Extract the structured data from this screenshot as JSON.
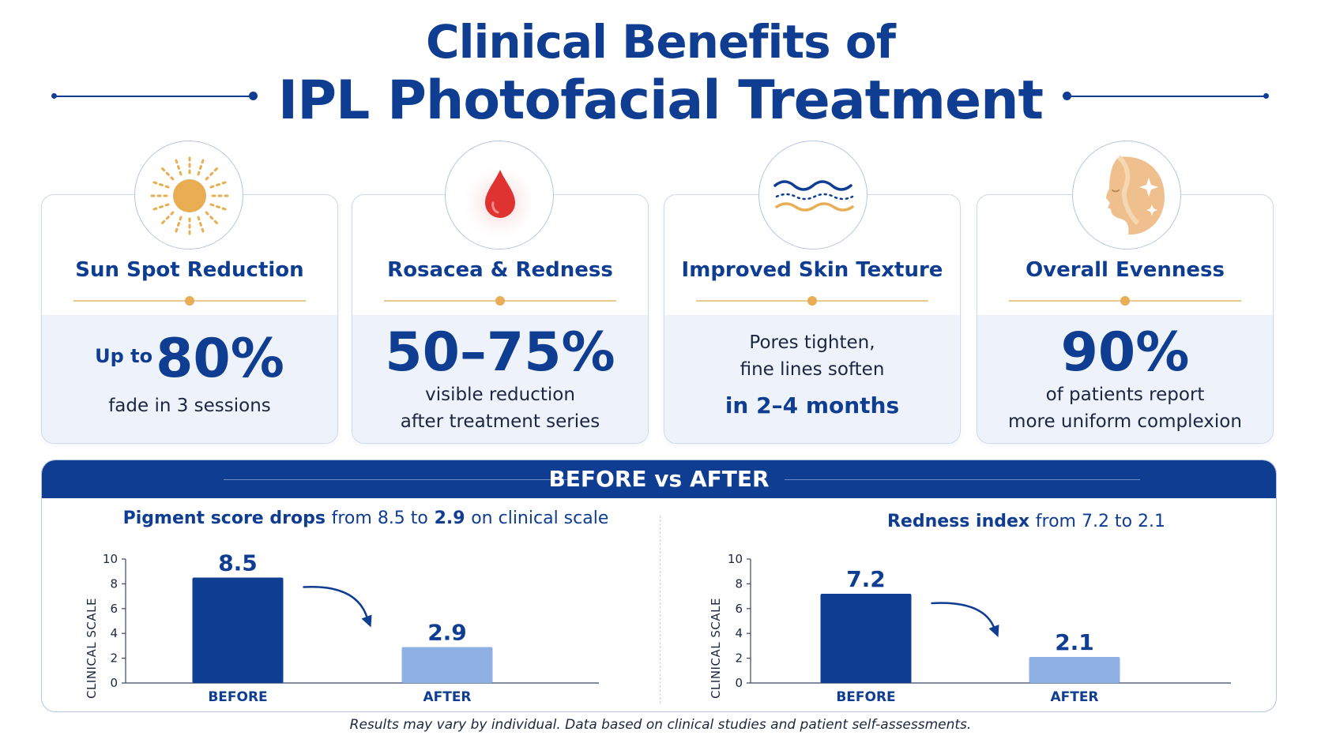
{
  "title": {
    "line1": "Clinical Benefits of",
    "line2": "IPL Photofacial Treatment"
  },
  "cards": [
    {
      "icon": "sun-icon",
      "name": "Sun Spot Reduction",
      "prefix": "Up to",
      "big": "80%",
      "sub1": "fade in 3 sessions",
      "sub2": ""
    },
    {
      "icon": "drop-icon",
      "name": "Rosacea & Redness",
      "big": "50–75%",
      "sub1": "visible reduction",
      "sub2": "after treatment series"
    },
    {
      "icon": "waves-icon",
      "name": "Improved Skin Texture",
      "sub1": "Pores tighten,",
      "sub2": "fine lines soften",
      "highlight": "in 2–4 months"
    },
    {
      "icon": "face-sparkle-icon",
      "name": "Overall Evenness",
      "big": "90%",
      "sub1": "of patients report",
      "sub2": "more uniform complexion"
    }
  ],
  "panel": {
    "title": "BEFORE vs AFTER"
  },
  "colors": {
    "primary": "#0f3d91",
    "before": "#0f3d91",
    "after": "#8fb0e3",
    "accent": "#e8ad55"
  },
  "chart_data": [
    {
      "type": "bar",
      "title_bold": "Pigment score drops",
      "title_rest": "from 8.5 to",
      "title_bold2": "2.9",
      "title_rest2": "on clinical scale",
      "categories": [
        "BEFORE",
        "AFTER"
      ],
      "values": [
        8.5,
        2.9
      ],
      "ylabel": "CLINICAL SCALE",
      "ylim": [
        0,
        10
      ],
      "yticks": [
        0,
        2,
        4,
        6,
        8,
        10
      ]
    },
    {
      "type": "bar",
      "title_bold": "Redness index",
      "title_rest": "from 7.2 to 2.1",
      "categories": [
        "BEFORE",
        "AFTER"
      ],
      "values": [
        7.2,
        2.1
      ],
      "ylabel": "CLINICAL SCALE",
      "ylim": [
        0,
        10
      ],
      "yticks": [
        0,
        2,
        4,
        6,
        8,
        10
      ]
    }
  ],
  "footnote": "Results may vary by individual. Data based on clinical studies and patient self-assessments."
}
